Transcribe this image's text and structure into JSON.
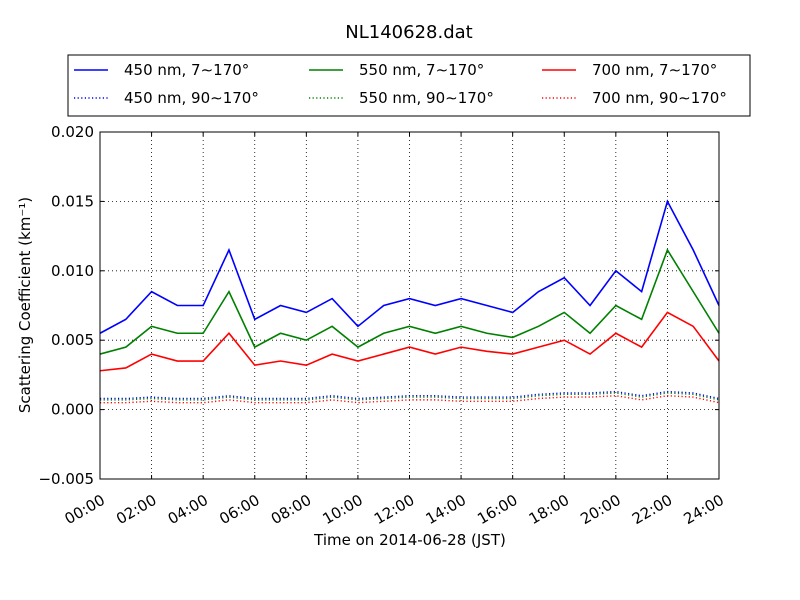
{
  "chart_data": {
    "type": "line",
    "title": "NL140628.dat",
    "xlabel": "Time on 2014-06-28 (JST)",
    "ylabel": "Scattering Coefficient (km⁻¹)",
    "x_ticks": [
      "00:00",
      "02:00",
      "04:00",
      "06:00",
      "08:00",
      "10:00",
      "12:00",
      "14:00",
      "16:00",
      "18:00",
      "20:00",
      "22:00",
      "24:00"
    ],
    "xlim_hours": [
      0,
      24
    ],
    "ylim": [
      -0.005,
      0.02
    ],
    "y_ticks": [
      "−0.005",
      "0.000",
      "0.005",
      "0.010",
      "0.015",
      "0.020"
    ],
    "y_tick_values": [
      -0.005,
      0.0,
      0.005,
      0.01,
      0.015,
      0.02
    ],
    "grid": true,
    "legend_placement": "top (above plot, 3 columns, 2 rows)",
    "x_hours": [
      0,
      1,
      2,
      3,
      4,
      5,
      6,
      7,
      8,
      9,
      10,
      11,
      12,
      13,
      14,
      15,
      16,
      17,
      18,
      19,
      20,
      21,
      22,
      23,
      24
    ],
    "series": [
      {
        "name": "450 nm, 7∼170°",
        "color": "#0000ff",
        "style": "solid",
        "values": [
          0.0055,
          0.0065,
          0.0085,
          0.0075,
          0.0075,
          0.0115,
          0.0065,
          0.0075,
          0.007,
          0.008,
          0.006,
          0.0075,
          0.008,
          0.0075,
          0.008,
          0.0075,
          0.007,
          0.0085,
          0.0095,
          0.0075,
          0.01,
          0.0085,
          0.015,
          0.0115,
          0.0075
        ]
      },
      {
        "name": "550 nm, 7∼170°",
        "color": "#008000",
        "style": "solid",
        "values": [
          0.004,
          0.0045,
          0.006,
          0.0055,
          0.0055,
          0.0085,
          0.0045,
          0.0055,
          0.005,
          0.006,
          0.0045,
          0.0055,
          0.006,
          0.0055,
          0.006,
          0.0055,
          0.0052,
          0.006,
          0.007,
          0.0055,
          0.0075,
          0.0065,
          0.0115,
          0.0085,
          0.0055
        ]
      },
      {
        "name": "700 nm, 7∼170°",
        "color": "#ff0000",
        "style": "solid",
        "values": [
          0.0028,
          0.003,
          0.004,
          0.0035,
          0.0035,
          0.0055,
          0.0032,
          0.0035,
          0.0032,
          0.004,
          0.0035,
          0.004,
          0.0045,
          0.004,
          0.0045,
          0.0042,
          0.004,
          0.0045,
          0.005,
          0.004,
          0.0055,
          0.0045,
          0.007,
          0.006,
          0.0035
        ]
      },
      {
        "name": "450 nm, 90∼170°",
        "color": "#0000ff",
        "style": "dotted",
        "values": [
          0.0008,
          0.0008,
          0.0009,
          0.0008,
          0.0008,
          0.001,
          0.0008,
          0.0008,
          0.0008,
          0.001,
          0.0008,
          0.0009,
          0.001,
          0.001,
          0.0009,
          0.0009,
          0.0009,
          0.0011,
          0.0012,
          0.0012,
          0.0013,
          0.001,
          0.0013,
          0.0012,
          0.0008
        ]
      },
      {
        "name": "550 nm, 90∼170°",
        "color": "#008000",
        "style": "dotted",
        "values": [
          0.0007,
          0.0007,
          0.0008,
          0.0007,
          0.0007,
          0.0009,
          0.0007,
          0.0007,
          0.0007,
          0.0009,
          0.0007,
          0.0008,
          0.0009,
          0.0009,
          0.0008,
          0.0008,
          0.0008,
          0.001,
          0.0011,
          0.0011,
          0.0012,
          0.0009,
          0.0012,
          0.0011,
          0.0007
        ]
      },
      {
        "name": "700 nm, 90∼170°",
        "color": "#ff0000",
        "style": "dotted",
        "values": [
          0.0005,
          0.0005,
          0.0006,
          0.0005,
          0.0005,
          0.0007,
          0.0005,
          0.0005,
          0.0005,
          0.0007,
          0.0005,
          0.0006,
          0.0007,
          0.0007,
          0.0006,
          0.0006,
          0.0006,
          0.0008,
          0.0009,
          0.0009,
          0.001,
          0.0007,
          0.001,
          0.0009,
          0.0005
        ]
      }
    ]
  }
}
